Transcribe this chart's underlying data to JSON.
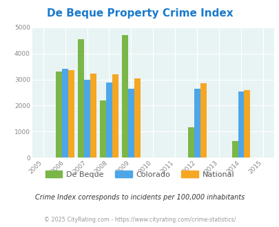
{
  "title": "De Beque Property Crime Index",
  "years": [
    2005,
    2006,
    2007,
    2008,
    2009,
    2010,
    2011,
    2012,
    2013,
    2014,
    2015
  ],
  "data_years": [
    2006,
    2007,
    2008,
    2009,
    2012,
    2014
  ],
  "de_beque": [
    3300,
    4550,
    2200,
    4700,
    1175,
    630
  ],
  "colorado": [
    3420,
    2990,
    2870,
    2650,
    2650,
    2540
  ],
  "national": [
    3350,
    3230,
    3210,
    3040,
    2860,
    2590
  ],
  "ylim": [
    0,
    5000
  ],
  "yticks": [
    0,
    1000,
    2000,
    3000,
    4000,
    5000
  ],
  "color_debeque": "#7ab648",
  "color_colorado": "#4da6e8",
  "color_national": "#f5a623",
  "bg_color": "#e8f4f4",
  "title_color": "#1a7acc",
  "axis_label_color": "#888888",
  "legend_label_color": "#555555",
  "footer_color": "#999999",
  "subtitle_color": "#333333",
  "subtitle": "Crime Index corresponds to incidents per 100,000 inhabitants",
  "footer": "© 2025 CityRating.com - https://www.cityrating.com/crime-statistics/",
  "bar_width": 0.28
}
